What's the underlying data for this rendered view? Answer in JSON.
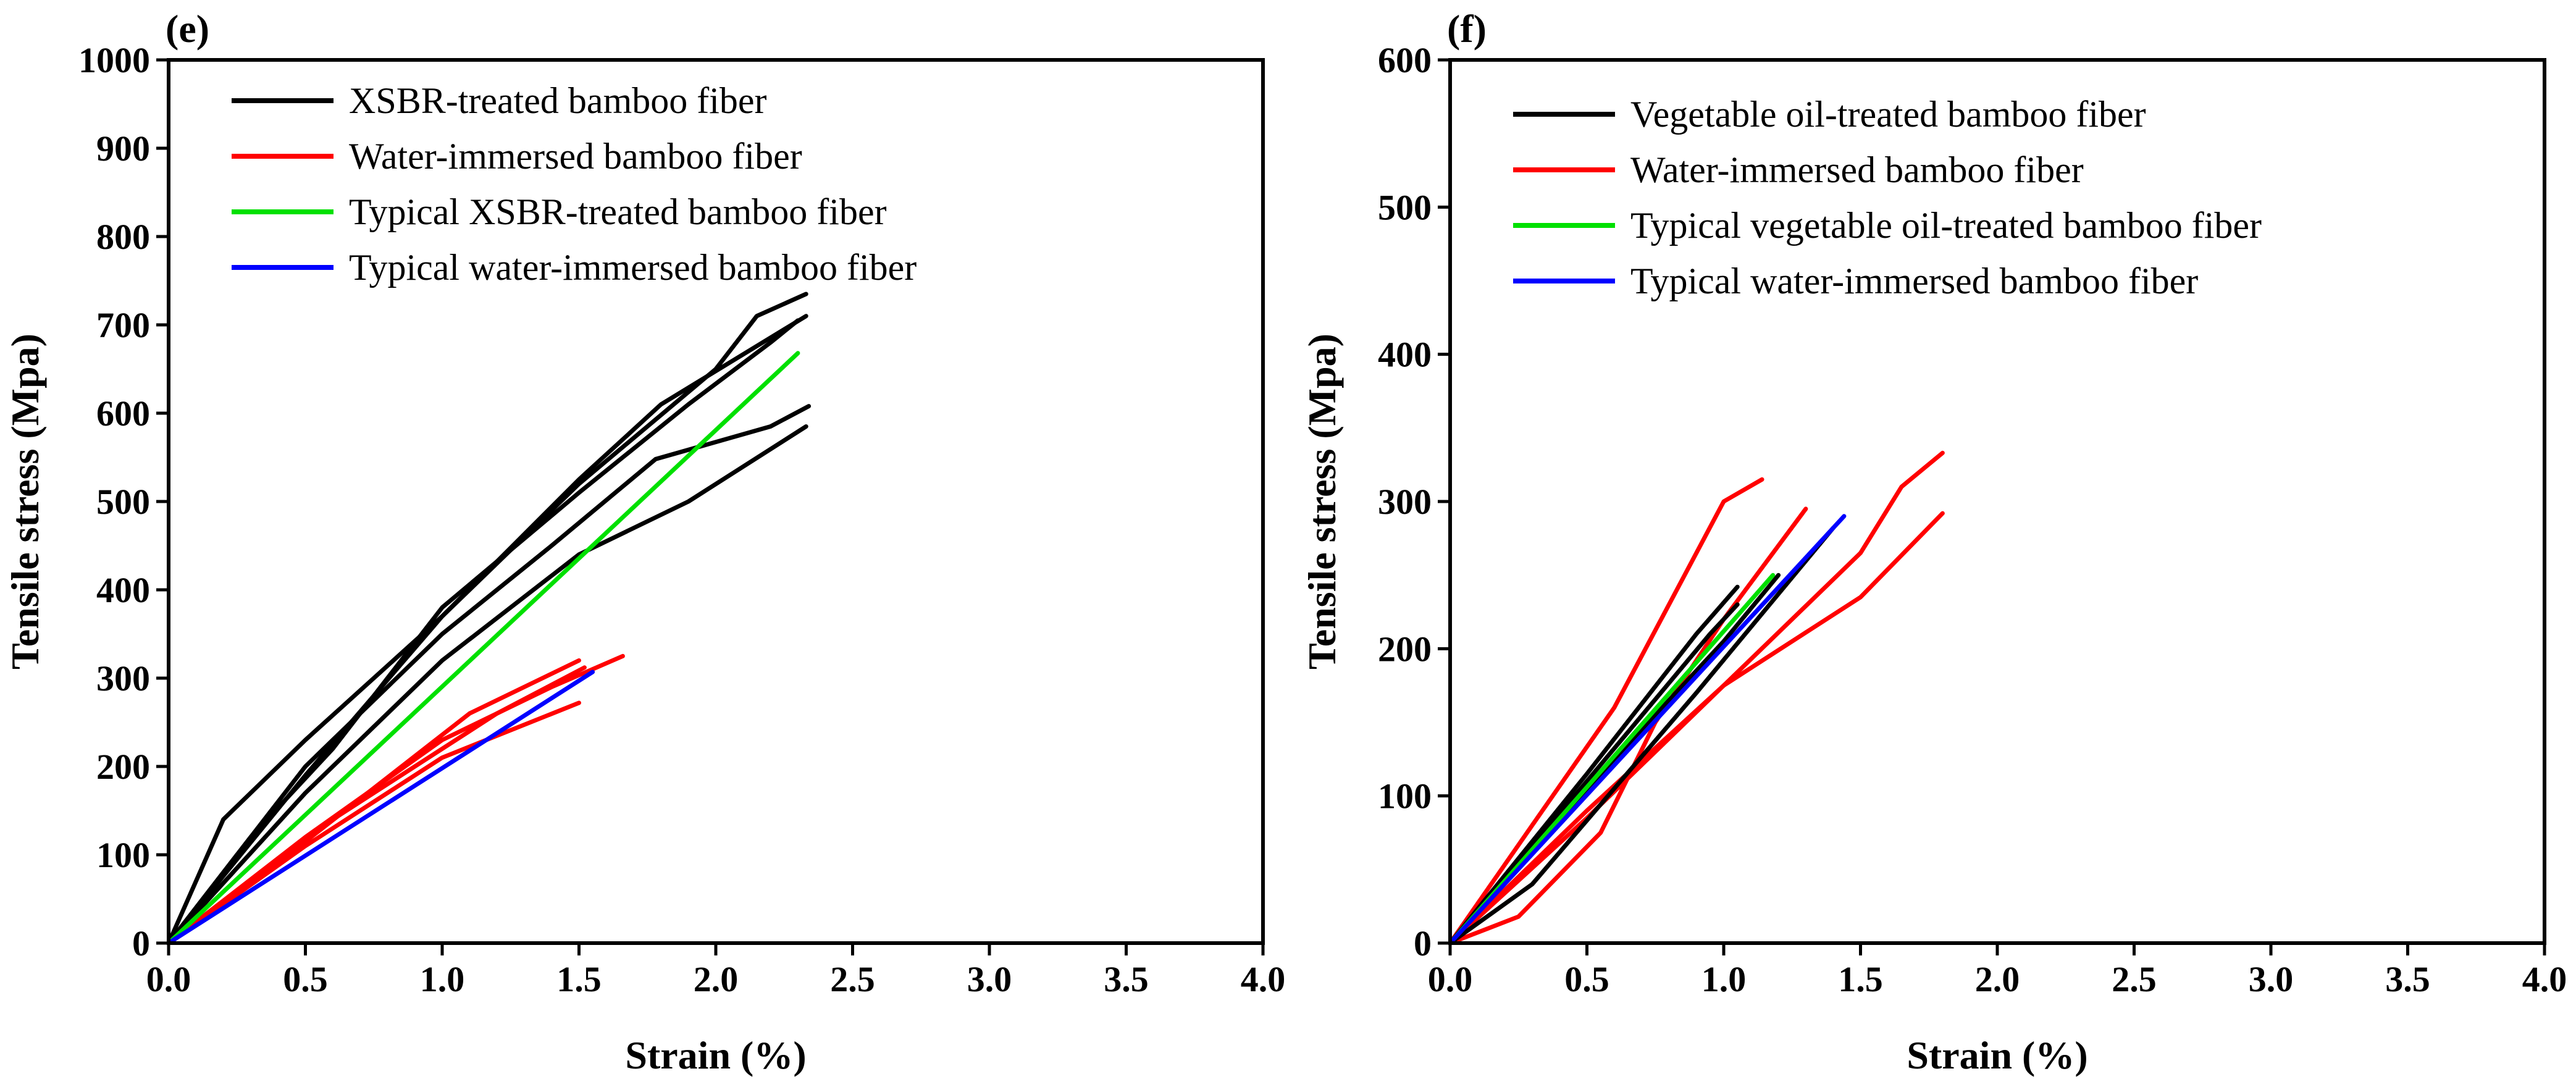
{
  "chart_data": [
    {
      "panel": "(e)",
      "type": "line",
      "xlabel": "Strain (%)",
      "ylabel": "Tensile stress (Mpa)",
      "xlim": [
        0,
        4.0
      ],
      "ylim": [
        0,
        1000
      ],
      "xticks": [
        0.0,
        0.5,
        1.0,
        1.5,
        2.0,
        2.5,
        3.0,
        3.5,
        4.0
      ],
      "xtick_labels": [
        "0.0",
        "0.5",
        "1.0",
        "1.5",
        "2.0",
        "2.5",
        "3.0",
        "3.5",
        "4.0"
      ],
      "yticks": [
        0,
        100,
        200,
        300,
        400,
        500,
        600,
        700,
        800,
        900,
        1000
      ],
      "ytick_labels": [
        "0",
        "100",
        "200",
        "300",
        "400",
        "500",
        "600",
        "700",
        "800",
        "900",
        "1000"
      ],
      "legend": [
        {
          "label": "XSBR-treated bamboo fiber",
          "color": "#000000"
        },
        {
          "label": "Water-immersed bamboo fiber",
          "color": "#ff0000"
        },
        {
          "label": "Typical XSBR-treated bamboo fiber",
          "color": "#00e000"
        },
        {
          "label": "Typical water-immersed bamboo fiber",
          "color": "#0000ff"
        }
      ],
      "series": [
        {
          "name": "XSBR-treated bamboo fiber",
          "color": "#000000",
          "x": [
            0,
            0.2,
            0.5,
            1.0,
            1.5,
            2.0,
            2.15,
            2.33
          ],
          "y": [
            0,
            140,
            230,
            370,
            520,
            650,
            710,
            735
          ]
        },
        {
          "name": "XSBR-treated bamboo fiber",
          "color": "#000000",
          "x": [
            0,
            0.3,
            0.6,
            1.0,
            1.5,
            1.9,
            2.2,
            2.3
          ],
          "y": [
            0,
            120,
            220,
            380,
            510,
            610,
            680,
            705
          ]
        },
        {
          "name": "XSBR-treated bamboo fiber",
          "color": "#000000",
          "x": [
            0,
            0.5,
            1.0,
            1.4,
            1.78,
            2.2,
            2.34
          ],
          "y": [
            0,
            200,
            350,
            450,
            548,
            585,
            608
          ]
        },
        {
          "name": "XSBR-treated bamboo fiber",
          "color": "#000000",
          "x": [
            0,
            0.5,
            1.0,
            1.5,
            1.8,
            2.33
          ],
          "y": [
            0,
            190,
            370,
            525,
            610,
            710
          ]
        },
        {
          "name": "XSBR-treated bamboo fiber",
          "color": "#000000",
          "x": [
            0,
            0.5,
            1.0,
            1.5,
            1.9,
            2.33
          ],
          "y": [
            0,
            170,
            320,
            440,
            500,
            585
          ]
        },
        {
          "name": "Water-immersed bamboo fiber",
          "color": "#ff0000",
          "x": [
            0,
            0.5,
            1.0,
            1.5
          ],
          "y": [
            0,
            110,
            210,
            272
          ]
        },
        {
          "name": "Water-immersed bamboo fiber",
          "color": "#ff0000",
          "x": [
            0,
            0.5,
            1.0,
            1.4,
            1.66
          ],
          "y": [
            0,
            120,
            230,
            290,
            325
          ]
        },
        {
          "name": "Water-immersed bamboo fiber",
          "color": "#ff0000",
          "x": [
            0,
            0.5,
            1.1,
            1.5
          ],
          "y": [
            0,
            115,
            260,
            320
          ]
        },
        {
          "name": "Water-immersed bamboo fiber",
          "color": "#ff0000",
          "x": [
            0,
            0.6,
            1.2,
            1.52
          ],
          "y": [
            0,
            140,
            260,
            312
          ]
        },
        {
          "name": "Typical XSBR-treated bamboo fiber",
          "color": "#00e000",
          "x": [
            0,
            2.3
          ],
          "y": [
            0,
            668
          ]
        },
        {
          "name": "Typical water-immersed bamboo fiber",
          "color": "#0000ff",
          "x": [
            0,
            1.55
          ],
          "y": [
            0,
            307
          ]
        }
      ]
    },
    {
      "panel": "(f)",
      "type": "line",
      "xlabel": "Strain (%)",
      "ylabel": "Tensile stress (Mpa)",
      "xlim": [
        0,
        4.0
      ],
      "ylim": [
        0,
        600
      ],
      "xticks": [
        0.0,
        0.5,
        1.0,
        1.5,
        2.0,
        2.5,
        3.0,
        3.5,
        4.0
      ],
      "xtick_labels": [
        "0.0",
        "0.5",
        "1.0",
        "1.5",
        "2.0",
        "2.5",
        "3.0",
        "3.5",
        "4.0"
      ],
      "yticks": [
        0,
        100,
        200,
        300,
        400,
        500,
        600
      ],
      "ytick_labels": [
        "0",
        "100",
        "200",
        "300",
        "400",
        "500",
        "600"
      ],
      "legend": [
        {
          "label": "Vegetable oil-treated bamboo fiber",
          "color": "#000000"
        },
        {
          "label": "Water-immersed bamboo fiber",
          "color": "#ff0000"
        },
        {
          "label": "Typical vegetable oil-treated  bamboo fiber",
          "color": "#00e000"
        },
        {
          "label": "Typical water-immersed bamboo fiber",
          "color": "#0000ff"
        }
      ],
      "series": [
        {
          "name": "Water-immersed bamboo fiber",
          "color": "#ff0000",
          "x": [
            0,
            0.3,
            0.6,
            1.0,
            1.14
          ],
          "y": [
            0,
            80,
            160,
            300,
            315
          ]
        },
        {
          "name": "Water-immersed bamboo fiber",
          "color": "#ff0000",
          "x": [
            0,
            0.25,
            0.55,
            0.75,
            1.0,
            1.3
          ],
          "y": [
            0,
            18,
            75,
            150,
            220,
            295
          ]
        },
        {
          "name": "Water-immersed bamboo fiber",
          "color": "#ff0000",
          "x": [
            0,
            0.5,
            1.0,
            1.5,
            1.8
          ],
          "y": [
            0,
            90,
            175,
            235,
            292
          ]
        },
        {
          "name": "Water-immersed bamboo fiber",
          "color": "#ff0000",
          "x": [
            0,
            0.5,
            1.0,
            1.5,
            1.65,
            1.8
          ],
          "y": [
            0,
            85,
            175,
            265,
            310,
            333
          ]
        },
        {
          "name": "Vegetable oil-treated bamboo fiber",
          "color": "#000000",
          "x": [
            0,
            0.5,
            0.9,
            1.05
          ],
          "y": [
            0,
            115,
            210,
            242
          ]
        },
        {
          "name": "Vegetable oil-treated bamboo fiber",
          "color": "#000000",
          "x": [
            0,
            0.5,
            0.95,
            1.05
          ],
          "y": [
            0,
            110,
            210,
            230
          ]
        },
        {
          "name": "Vegetable oil-treated bamboo fiber",
          "color": "#000000",
          "x": [
            0,
            0.5,
            1.0,
            1.2
          ],
          "y": [
            0,
            105,
            205,
            250
          ]
        },
        {
          "name": "Vegetable oil-treated bamboo fiber",
          "color": "#000000",
          "x": [
            0,
            0.3,
            0.9,
            1.4
          ],
          "y": [
            0,
            40,
            170,
            282
          ]
        },
        {
          "name": "Typical vegetable oil-treated  bamboo fiber",
          "color": "#00e000",
          "x": [
            0,
            1.18
          ],
          "y": [
            0,
            250
          ]
        },
        {
          "name": "Typical water-immersed bamboo fiber",
          "color": "#0000ff",
          "x": [
            0,
            1.44
          ],
          "y": [
            0,
            290
          ]
        }
      ]
    }
  ]
}
